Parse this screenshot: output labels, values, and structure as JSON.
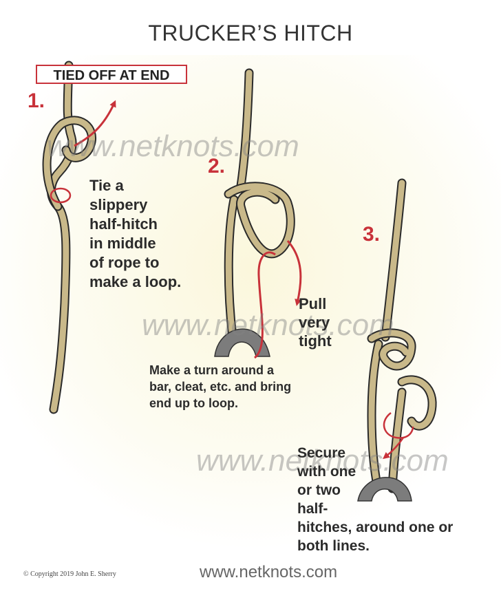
{
  "title": "TRUCKER’S HITCH",
  "tag_label": "TIED OFF AT END",
  "steps": [
    {
      "number": "1.",
      "text_lines": [
        "Tie a",
        "slippery",
        "half-hitch",
        "in middle",
        "of rope to",
        "make a loop."
      ]
    },
    {
      "number": "2.",
      "text_lines": [
        "Make a turn around a",
        "bar, cleat, etc. and bring",
        "end up to loop."
      ],
      "pull_lines": [
        "Pull",
        "very",
        "tight"
      ]
    },
    {
      "number": "3.",
      "text_lines": [
        "Secure",
        "with one",
        "or two",
        "half-",
        "hitches, around one or",
        "both lines."
      ]
    }
  ],
  "watermark": "www.netknots.com",
  "footer_url": "www.netknots.com",
  "copyright": "© Copyright  2019  John E. Sherry",
  "colors": {
    "rope": "#c9b98a",
    "rope_outline": "#2a2a2a",
    "arrow": "#c8323a",
    "bar": "#7c7c7c"
  }
}
